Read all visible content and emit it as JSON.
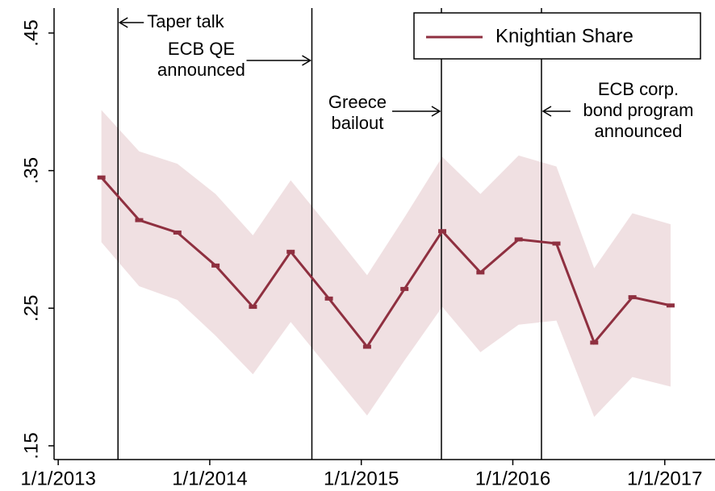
{
  "chart_data": {
    "type": "line",
    "x": [
      "2013-04-15",
      "2013-07-15",
      "2013-10-15",
      "2014-01-15",
      "2014-04-15",
      "2014-07-15",
      "2014-10-15",
      "2015-01-15",
      "2015-04-15",
      "2015-07-15",
      "2015-10-15",
      "2016-01-15",
      "2016-04-15",
      "2016-07-15",
      "2016-10-15",
      "2017-01-15"
    ],
    "series": [
      {
        "name": "Knightian Share",
        "color": "#8f3040",
        "band_color": "#f0e0e2",
        "values": [
          0.345,
          0.314,
          0.305,
          0.281,
          0.251,
          0.291,
          0.257,
          0.222,
          0.264,
          0.306,
          0.276,
          0.3,
          0.297,
          0.225,
          0.258,
          0.252
        ],
        "upper": [
          0.394,
          0.364,
          0.355,
          0.333,
          0.303,
          0.343,
          0.309,
          0.274,
          0.316,
          0.36,
          0.333,
          0.361,
          0.353,
          0.279,
          0.319,
          0.311
        ],
        "lower": [
          0.298,
          0.266,
          0.256,
          0.23,
          0.202,
          0.24,
          0.206,
          0.172,
          0.212,
          0.251,
          0.218,
          0.238,
          0.241,
          0.171,
          0.2,
          0.193
        ]
      }
    ],
    "xlim": [
      "2012-12-22",
      "2017-05-02"
    ],
    "xticks": [
      {
        "value": "2013-01-01",
        "label": "1/1/2013"
      },
      {
        "value": "2014-01-01",
        "label": "1/1/2014"
      },
      {
        "value": "2015-01-01",
        "label": "1/1/2015"
      },
      {
        "value": "2016-01-01",
        "label": "1/1/2016"
      },
      {
        "value": "2017-01-01",
        "label": "1/1/2017"
      }
    ],
    "ylim": [
      0.14,
      0.474
    ],
    "yticks": [
      {
        "value": 0.15,
        "label": ".15"
      },
      {
        "value": 0.25,
        "label": ".25"
      },
      {
        "value": 0.35,
        "label": ".35"
      },
      {
        "value": 0.45,
        "label": ".45"
      }
    ],
    "annotations": [
      {
        "x": "2013-05-25",
        "text": [
          "Taper talk"
        ]
      },
      {
        "x": "2014-09-04",
        "text": [
          "ECB QE",
          "announced"
        ]
      },
      {
        "x": "2015-07-13",
        "text": [
          "Greece",
          "bailout"
        ]
      },
      {
        "x": "2016-03-10",
        "text": [
          "ECB corp.",
          "bond program",
          "announced"
        ]
      }
    ],
    "legend": "top right",
    "grid": false
  }
}
